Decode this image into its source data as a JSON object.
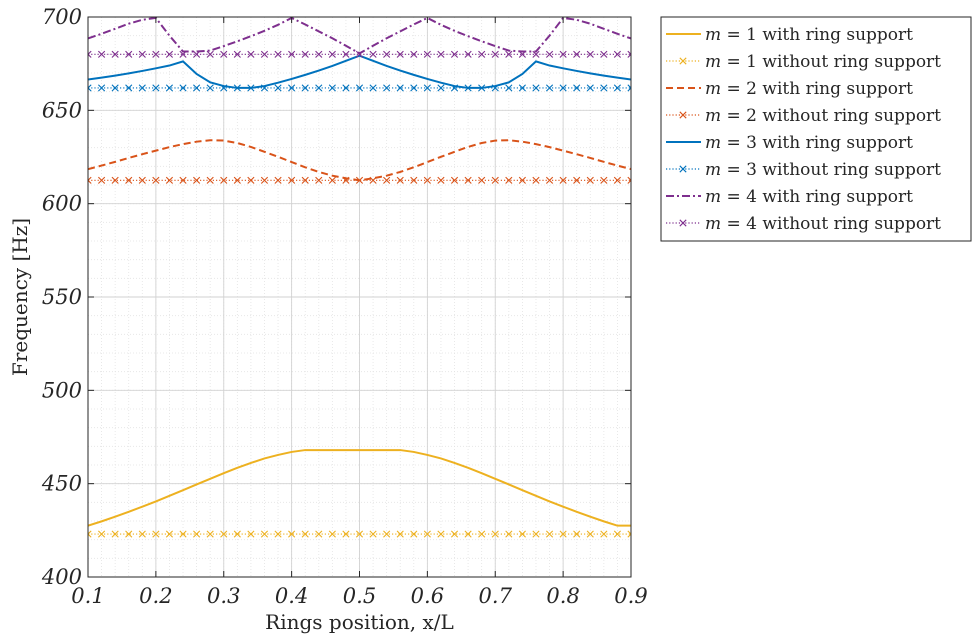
{
  "chart_data": {
    "type": "line",
    "xlabel": "Rings position, x/L",
    "ylabel": "Frequency [Hz]",
    "xlim": [
      0.1,
      0.9
    ],
    "ylim": [
      400,
      700
    ],
    "xticks": [
      0.1,
      0.2,
      0.3,
      0.4,
      0.5,
      0.6,
      0.7,
      0.8,
      0.9
    ],
    "yticks": [
      400,
      450,
      500,
      550,
      600,
      650,
      700
    ],
    "grid": true,
    "minor_grid": true,
    "legend_position": "outside-top-right",
    "x": [
      0.1,
      0.12,
      0.14,
      0.16,
      0.18,
      0.2,
      0.22,
      0.24,
      0.26,
      0.28,
      0.3,
      0.32,
      0.34,
      0.36,
      0.38,
      0.4,
      0.42,
      0.44,
      0.46,
      0.48,
      0.5,
      0.52,
      0.54,
      0.56,
      0.58,
      0.6,
      0.62,
      0.64,
      0.66,
      0.68,
      0.7,
      0.72,
      0.74,
      0.76,
      0.78,
      0.8,
      0.82,
      0.84,
      0.86,
      0.88,
      0.9
    ],
    "series": [
      {
        "name": "m = 1 with ring support",
        "color": "#EDB120",
        "dash": "solid",
        "marker": "none",
        "values": [
          427.5,
          429.8,
          432.3,
          434.9,
          437.7,
          440.5,
          443.5,
          446.5,
          449.6,
          452.6,
          455.6,
          458.5,
          461.1,
          463.5,
          465.4,
          467.0,
          468.0,
          468.0,
          468.0,
          468.0,
          468.0,
          468.0,
          468.0,
          468.0,
          467.0,
          465.4,
          463.5,
          461.1,
          458.5,
          455.6,
          452.6,
          449.6,
          446.5,
          443.5,
          440.5,
          437.7,
          434.9,
          432.3,
          429.8,
          427.5,
          427.5
        ]
      },
      {
        "name": "m = 1 without ring support",
        "color": "#EDB120",
        "dash": "dotted",
        "marker": "x",
        "values": [
          423,
          423,
          423,
          423,
          423,
          423,
          423,
          423,
          423,
          423,
          423,
          423,
          423,
          423,
          423,
          423,
          423,
          423,
          423,
          423,
          423,
          423,
          423,
          423,
          423,
          423,
          423,
          423,
          423,
          423,
          423,
          423,
          423,
          423,
          423,
          423,
          423,
          423,
          423,
          423,
          423
        ]
      },
      {
        "name": "m = 2 with ring support",
        "color": "#D95319",
        "dash": "dashed",
        "marker": "none",
        "values": [
          618.5,
          620.4,
          622.4,
          624.5,
          626.5,
          628.4,
          630.3,
          631.9,
          633.2,
          634.0,
          633.8,
          632.5,
          630.4,
          627.8,
          625.1,
          622.3,
          619.5,
          617.0,
          615.0,
          613.6,
          612.5,
          613.6,
          615.0,
          617.0,
          619.5,
          622.3,
          625.1,
          627.8,
          630.4,
          632.5,
          633.8,
          634.0,
          633.2,
          631.9,
          630.3,
          628.4,
          626.5,
          624.5,
          622.4,
          620.4,
          618.5
        ]
      },
      {
        "name": "m = 2 without ring support",
        "color": "#D95319",
        "dash": "dotted",
        "marker": "x",
        "values": [
          612.5,
          612.5,
          612.5,
          612.5,
          612.5,
          612.5,
          612.5,
          612.5,
          612.5,
          612.5,
          612.5,
          612.5,
          612.5,
          612.5,
          612.5,
          612.5,
          612.5,
          612.5,
          612.5,
          612.5,
          612.5,
          612.5,
          612.5,
          612.5,
          612.5,
          612.5,
          612.5,
          612.5,
          612.5,
          612.5,
          612.5,
          612.5,
          612.5,
          612.5,
          612.5,
          612.5,
          612.5,
          612.5,
          612.5,
          612.5,
          612.5
        ]
      },
      {
        "name": "m = 3 with ring support",
        "color": "#0072BD",
        "dash": "solid",
        "marker": "none",
        "values": [
          666.5,
          667.5,
          668.6,
          669.8,
          671.1,
          672.5,
          674.0,
          676.2,
          669.5,
          665.0,
          663.0,
          662.0,
          662.0,
          663.0,
          664.8,
          666.8,
          669.0,
          671.3,
          673.8,
          676.5,
          679.3,
          676.5,
          673.8,
          671.3,
          669.0,
          666.8,
          664.8,
          663.0,
          662.0,
          662.0,
          663.0,
          665.0,
          669.5,
          676.2,
          674.0,
          672.5,
          671.1,
          669.8,
          668.6,
          667.5,
          666.5
        ]
      },
      {
        "name": "m = 3 without ring support",
        "color": "#0072BD",
        "dash": "dotted",
        "marker": "x",
        "values": [
          662,
          662,
          662,
          662,
          662,
          662,
          662,
          662,
          662,
          662,
          662,
          662,
          662,
          662,
          662,
          662,
          662,
          662,
          662,
          662,
          662,
          662,
          662,
          662,
          662,
          662,
          662,
          662,
          662,
          662,
          662,
          662,
          662,
          662,
          662,
          662,
          662,
          662,
          662,
          662,
          662
        ]
      },
      {
        "name": "m = 4 with ring support",
        "color": "#7E2F8E",
        "dash": "dashdot",
        "marker": "none",
        "values": [
          688.5,
          691.0,
          693.7,
          696.4,
          698.5,
          699.5,
          690.0,
          681.5,
          681.5,
          682.0,
          684.4,
          687.0,
          689.7,
          692.6,
          695.8,
          699.5,
          696.0,
          692.3,
          688.6,
          684.6,
          680.5,
          684.6,
          688.6,
          692.3,
          696.0,
          699.5,
          695.8,
          692.6,
          689.7,
          687.0,
          684.4,
          682.0,
          681.5,
          681.5,
          690.0,
          699.5,
          698.5,
          696.4,
          693.7,
          691.0,
          688.5
        ]
      },
      {
        "name": "m = 4 without ring support",
        "color": "#7E2F8E",
        "dash": "dotted",
        "marker": "x",
        "values": [
          680,
          680,
          680,
          680,
          680,
          680,
          680,
          680,
          680,
          680,
          680,
          680,
          680,
          680,
          680,
          680,
          680,
          680,
          680,
          680,
          680,
          680,
          680,
          680,
          680,
          680,
          680,
          680,
          680,
          680,
          680,
          680,
          680,
          680,
          680,
          680,
          680,
          680,
          680,
          680,
          680
        ]
      }
    ]
  }
}
